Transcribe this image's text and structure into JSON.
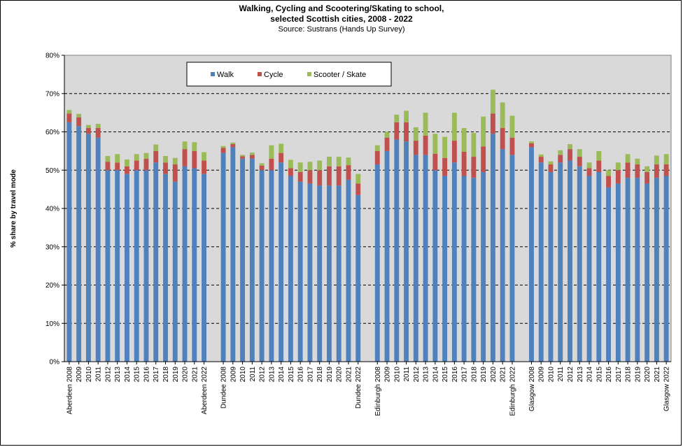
{
  "chart_data": {
    "type": "bar",
    "stacked": true,
    "title": "Walking, Cycling and Scootering/Skating to school,",
    "title_line2": "selected Scottish cities, 2008 - 2022",
    "subtitle": "Source: Sustrans (Hands Up Survey)",
    "ylabel": "% share by travel mode",
    "ylim": [
      0,
      80
    ],
    "y_ticks": [
      "0%",
      "10%",
      "20%",
      "30%",
      "40%",
      "50%",
      "60%",
      "70%",
      "80%"
    ],
    "grid": "horizontal dashed",
    "legend_position": "top-left inside",
    "colors": {
      "walk": "#4f81bd",
      "cycle": "#c0504d",
      "scooter": "#9bbb59",
      "plot_bg": "#d9d9d9"
    },
    "series_names": [
      "Walk",
      "Cycle",
      "Scooter / Skate"
    ],
    "groups": [
      {
        "city": "Aberdeen",
        "labels": [
          "Aberdeen 2008",
          "2009",
          "2010",
          "2011",
          "2012",
          "2013",
          "2014",
          "2015",
          "2016",
          "2017",
          "2018",
          "2019",
          "2020",
          "2021",
          "Aberdeen 2022"
        ],
        "walk": [
          62.5,
          61.5,
          59.5,
          58.5,
          50.0,
          50.0,
          49.0,
          50.0,
          50.0,
          52.0,
          49.0,
          47.0,
          51.0,
          50.5,
          49.0
        ],
        "cycle": [
          2.3,
          2.3,
          1.5,
          2.5,
          2.2,
          2.0,
          2.0,
          2.5,
          3.0,
          3.0,
          3.0,
          4.5,
          4.5,
          4.5,
          3.5
        ],
        "scooter": [
          0.9,
          0.9,
          0.8,
          1.1,
          1.5,
          2.2,
          1.8,
          1.7,
          1.5,
          1.7,
          1.7,
          1.7,
          2.0,
          2.3,
          2.2
        ]
      },
      {
        "city": "Dundee",
        "labels": [
          "Dundee 2008",
          "2009",
          "2010",
          "2011",
          "2012",
          "2013",
          "2014",
          "2015",
          "2016",
          "2017",
          "2018",
          "2019",
          "2020",
          "2021",
          "Dundee 2022"
        ],
        "walk": [
          54.5,
          56.0,
          53.0,
          53.0,
          50.0,
          50.0,
          52.0,
          48.5,
          47.0,
          46.5,
          46.0,
          46.0,
          46.0,
          47.5,
          43.5
        ],
        "cycle": [
          1.3,
          0.8,
          0.6,
          1.0,
          1.2,
          3.0,
          2.5,
          2.0,
          2.5,
          3.5,
          4.0,
          5.0,
          5.0,
          3.8,
          3.0
        ],
        "scooter": [
          0.5,
          0.4,
          0.4,
          0.6,
          0.6,
          3.5,
          2.4,
          2.2,
          2.5,
          2.2,
          2.5,
          2.5,
          2.5,
          2.0,
          2.5
        ]
      },
      {
        "city": "Edinburgh",
        "labels": [
          "Edinburgh 2008",
          "2009",
          "2010",
          "2011",
          "2012",
          "2013",
          "2014",
          "2015",
          "2016",
          "2017",
          "2018",
          "2019",
          "2020",
          "2021",
          "Edinburgh 2022"
        ],
        "walk": [
          51.5,
          55.0,
          58.0,
          57.5,
          54.0,
          54.0,
          50.0,
          48.5,
          52.0,
          48.5,
          48.0,
          49.5,
          59.5,
          55.5,
          54.0
        ],
        "cycle": [
          3.5,
          3.5,
          4.5,
          5.0,
          3.7,
          5.0,
          4.3,
          4.7,
          5.7,
          6.3,
          5.5,
          6.7,
          5.3,
          5.5,
          4.5
        ],
        "scooter": [
          1.5,
          1.5,
          2.0,
          3.0,
          3.5,
          6.0,
          5.2,
          5.5,
          7.3,
          6.2,
          6.2,
          7.8,
          6.2,
          6.7,
          5.7
        ]
      },
      {
        "city": "Glasgow",
        "labels": [
          "Glasgow 2008",
          "2009",
          "2010",
          "2011",
          "2012",
          "2013",
          "2014",
          "2015",
          "2016",
          "2017",
          "2018",
          "2019",
          "2020",
          "2021",
          "Glasgow 2022"
        ],
        "walk": [
          56.0,
          52.0,
          49.5,
          52.0,
          52.5,
          51.0,
          48.5,
          49.5,
          45.5,
          46.5,
          48.0,
          48.0,
          46.5,
          48.0,
          48.5
        ],
        "cycle": [
          1.0,
          1.5,
          2.0,
          2.0,
          3.0,
          2.5,
          2.0,
          3.0,
          3.0,
          3.5,
          4.0,
          3.5,
          3.0,
          3.5,
          3.0
        ],
        "scooter": [
          0.5,
          0.6,
          0.8,
          1.2,
          1.3,
          2.0,
          1.5,
          2.5,
          1.5,
          2.0,
          2.2,
          1.5,
          1.5,
          2.3,
          2.7
        ]
      }
    ]
  }
}
